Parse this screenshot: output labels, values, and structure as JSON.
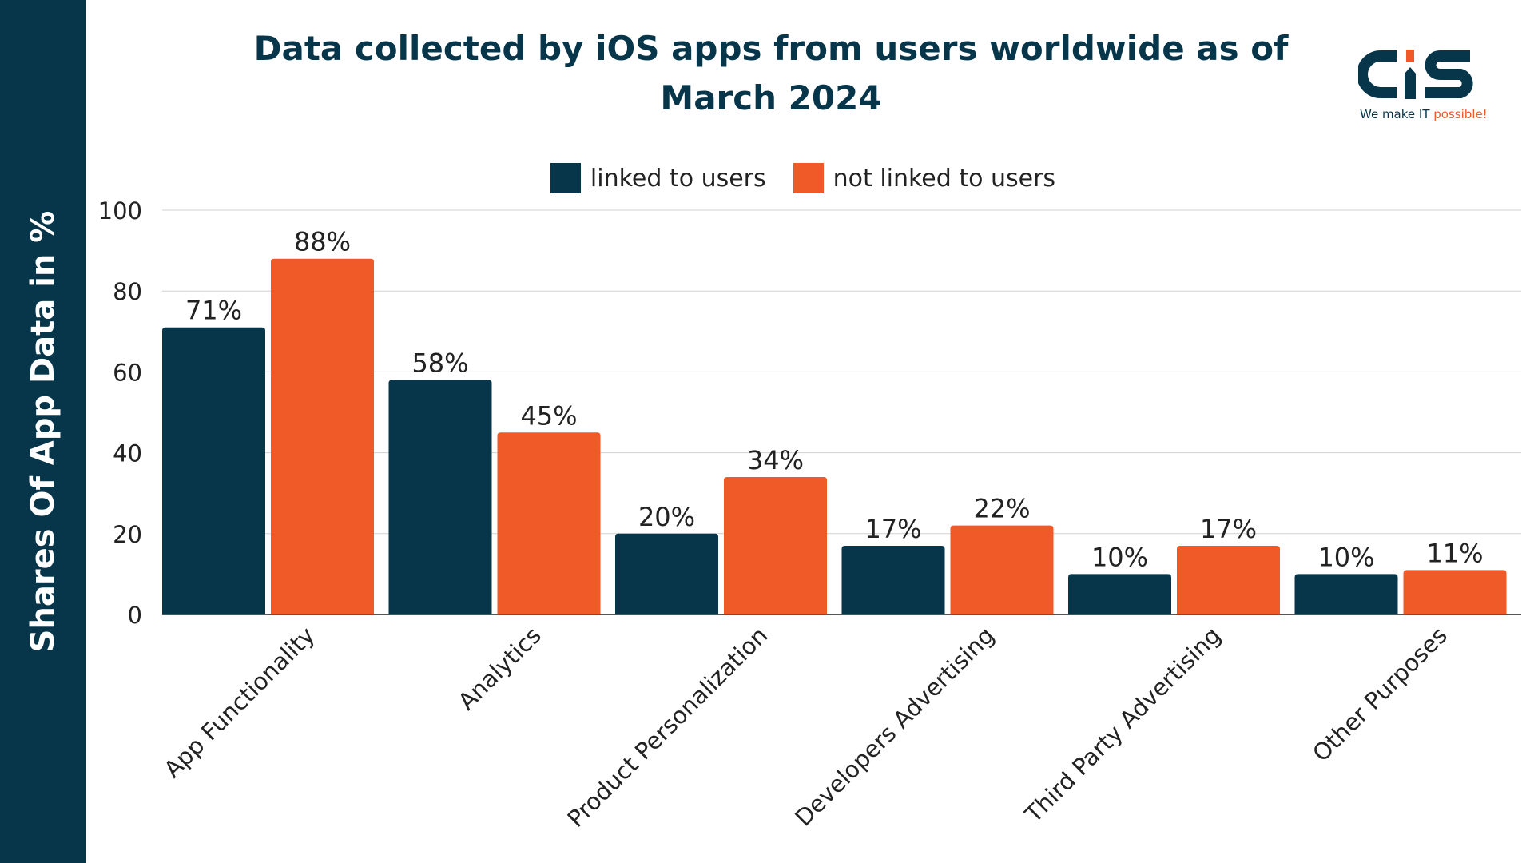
{
  "chart_data": {
    "type": "bar",
    "title": "Data collected by iOS apps from users worldwide as of March 2024",
    "ylabel": "Shares Of App Data in %",
    "xlabel": "",
    "ylim": [
      0,
      100
    ],
    "yticks": [
      0,
      20,
      40,
      60,
      80,
      100
    ],
    "grid": true,
    "legend": "top",
    "categories": [
      "App Functionality",
      "Analytics",
      "Product Personalization",
      "Developers Advertising",
      "Third Party Advertising",
      "Other Purposes"
    ],
    "series": [
      {
        "name": "linked to users",
        "color": "#07364b",
        "values": [
          71,
          58,
          20,
          17,
          10,
          10
        ]
      },
      {
        "name": "not linked to users",
        "color": "#f05a28",
        "values": [
          88,
          45,
          34,
          22,
          17,
          11
        ]
      }
    ],
    "data_label_suffix": "%"
  },
  "logo": {
    "text": "CIS",
    "tagline_a": "We make IT",
    "tagline_b": "possible!"
  }
}
